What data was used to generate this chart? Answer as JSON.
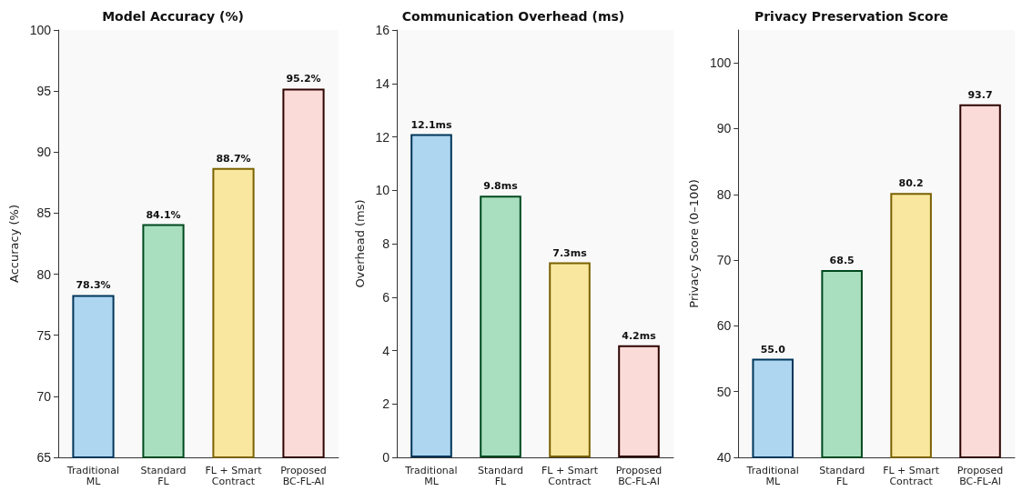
{
  "chart_data": [
    {
      "type": "bar",
      "title": "Model Accuracy (%)",
      "ylabel": "Accuracy (%)",
      "categories": [
        "Traditional\nML",
        "Standard\nFL",
        "FL + Smart\nContract",
        "Proposed\nBC-FL-AI"
      ],
      "values": [
        78.3,
        84.1,
        88.7,
        95.2
      ],
      "value_labels": [
        "78.3%",
        "84.1%",
        "88.7%",
        "95.2%"
      ],
      "colors": [
        "#aed6f1",
        "#a9dfbf",
        "#f9e79f",
        "#fadbd8"
      ],
      "ylim": [
        65,
        100
      ],
      "yticks": [
        65,
        70,
        75,
        80,
        85,
        90,
        95,
        100
      ],
      "grid": false
    },
    {
      "type": "bar",
      "title": "Communication Overhead (ms)",
      "ylabel": "Overhead (ms)",
      "categories": [
        "Traditional\nML",
        "Standard\nFL",
        "FL + Smart\nContract",
        "Proposed\nBC-FL-AI"
      ],
      "values": [
        12.1,
        9.8,
        7.3,
        4.2
      ],
      "value_labels": [
        "12.1ms",
        "9.8ms",
        "7.3ms",
        "4.2ms"
      ],
      "colors": [
        "#aed6f1",
        "#a9dfbf",
        "#f9e79f",
        "#fadbd8"
      ],
      "ylim": [
        0,
        16
      ],
      "yticks": [
        0,
        2,
        4,
        6,
        8,
        10,
        12,
        14,
        16
      ],
      "grid": false
    },
    {
      "type": "bar",
      "title": "Privacy Preservation Score",
      "ylabel": "Privacy Score (0–100)",
      "categories": [
        "Traditional\nML",
        "Standard\nFL",
        "FL + Smart\nContract",
        "Proposed\nBC-FL-AI"
      ],
      "values": [
        55.0,
        68.5,
        80.2,
        93.7
      ],
      "value_labels": [
        "55.0",
        "68.5",
        "80.2",
        "93.7"
      ],
      "colors": [
        "#aed6f1",
        "#a9dfbf",
        "#f9e79f",
        "#fadbd8"
      ],
      "ylim": [
        40,
        105
      ],
      "yticks": [
        40,
        50,
        60,
        70,
        80,
        90,
        100
      ],
      "grid": false
    }
  ]
}
